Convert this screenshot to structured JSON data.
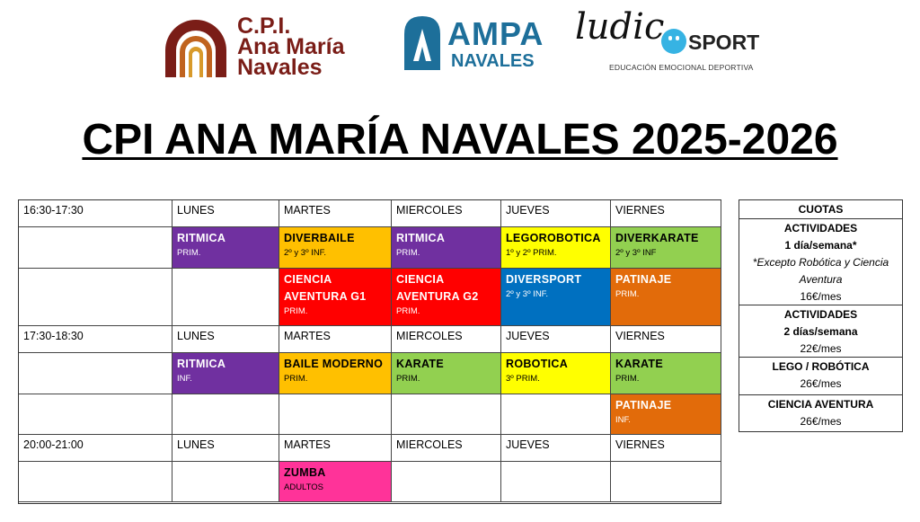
{
  "logos": {
    "cpi": {
      "line1": "C.P.I.",
      "line2": "Ana María",
      "line3": "Navales"
    },
    "ampa": {
      "line1": "AMPA",
      "line2": "NAVALES"
    },
    "ludico": {
      "script": "ludic",
      "sport": "SPORT",
      "tagline": "EDUCACIÓN EMOCIONAL DEPORTIVA"
    }
  },
  "title": "CPI ANA MARÍA NAVALES 2025-2026",
  "colors": {
    "purple": "#7030a0",
    "orange": "#ffc000",
    "yellow": "#ffff00",
    "green": "#92d050",
    "red": "#ff0000",
    "blue": "#0070c0",
    "darkorange": "#e26b0a",
    "pink": "#ff3399"
  },
  "schedule": {
    "days": [
      "LUNES",
      "MARTES",
      "MIERCOLES",
      "JUEVES",
      "VIERNES"
    ],
    "slots": [
      {
        "time": "16:30-17:30",
        "days": [
          "LUNES",
          "MARTES",
          "MIERCOLES",
          "JUEVES",
          "VIERNES"
        ],
        "rows": [
          [
            {
              "name": "RITMICA",
              "sub": "PRIM.",
              "color": "purple",
              "text": "white"
            },
            {
              "name": "DIVERBAILE",
              "sub": "2º y 3º INF.",
              "color": "orange",
              "text": "black"
            },
            {
              "name": "RITMICA",
              "sub": "PRIM.",
              "color": "purple",
              "text": "white"
            },
            {
              "name": "LEGOROBOTICA",
              "sub": "1º y 2º PRIM.",
              "color": "yellow",
              "text": "black"
            },
            {
              "name": "DIVERKARATE",
              "sub": "2º y 3º INF",
              "color": "green",
              "text": "black"
            }
          ],
          [
            null,
            {
              "name": "CIENCIA AVENTURA G1",
              "sub": "PRIM.",
              "color": "red",
              "text": "white"
            },
            {
              "name": "CIENCIA AVENTURA G2",
              "sub": "PRIM.",
              "color": "red",
              "text": "white"
            },
            {
              "name": "DIVERSPORT",
              "sub": "2º y 3º INF.",
              "color": "blue",
              "text": "white"
            },
            {
              "name": "PATINAJE",
              "sub": "PRIM.",
              "color": "darkorange",
              "text": "white"
            }
          ]
        ]
      },
      {
        "time": "17:30-18:30",
        "days": [
          "LUNES",
          "MARTES",
          "MIERCOLES",
          "JUEVES",
          "VIERNES"
        ],
        "rows": [
          [
            {
              "name": "RITMICA",
              "sub": "INF.",
              "color": "purple",
              "text": "white"
            },
            {
              "name": "BAILE MODERNO",
              "sub": "PRIM.",
              "color": "orange",
              "text": "black"
            },
            {
              "name": "KARATE",
              "sub": "PRIM.",
              "color": "green",
              "text": "black"
            },
            {
              "name": "ROBOTICA",
              "sub": "3º PRIM.",
              "color": "yellow",
              "text": "black"
            },
            {
              "name": "KARATE",
              "sub": "PRIM.",
              "color": "green",
              "text": "black"
            }
          ],
          [
            null,
            null,
            null,
            null,
            {
              "name": "PATINAJE",
              "sub": "INF.",
              "color": "darkorange",
              "text": "white"
            }
          ]
        ]
      },
      {
        "time": "20:00-21:00",
        "days": [
          "LUNES",
          "MARTES",
          "MIERCOLES",
          "JUEVES",
          "VIERNES"
        ],
        "rows": [
          [
            null,
            {
              "name": "ZUMBA",
              "sub": "ADULTOS",
              "color": "pink",
              "text": "black"
            },
            null,
            null,
            null
          ]
        ]
      }
    ]
  },
  "cuotas": {
    "heading": "CUOTAS",
    "block1": {
      "l1": "ACTIVIDADES",
      "l2": "1 día/semana*",
      "l3": "*Excepto Robótica y Ciencia",
      "l4": "Aventura",
      "price": "16€/mes"
    },
    "block2": {
      "l1": "ACTIVIDADES",
      "l2": "2 días/semana",
      "price": "22€/mes"
    },
    "block3": {
      "l1": "LEGO / ROBÓTICA",
      "price": "26€/mes"
    },
    "block4": {
      "l1": "CIENCIA AVENTURA",
      "price": "26€/mes"
    }
  }
}
